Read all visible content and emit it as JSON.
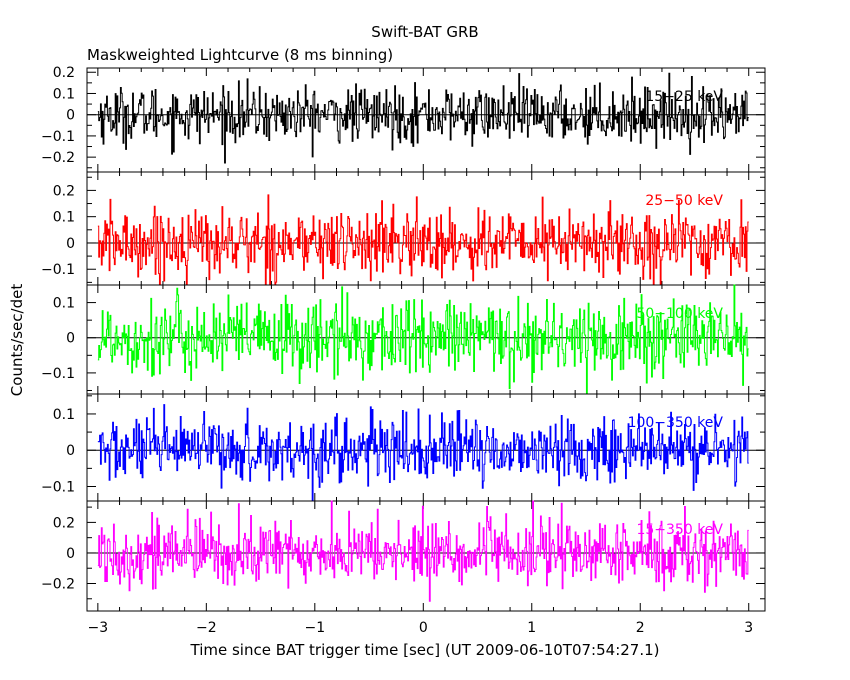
{
  "chart_data": {
    "type": "line",
    "title": "Swift-BAT GRB",
    "subtitle": "Maskweighted Lightcurve (8 ms binning)",
    "xlabel": "Time since BAT trigger time [sec] (UT 2009-06-10T07:54:27.1)",
    "ylabel": "Counts/sec/det",
    "xlim": [
      -3.1,
      3.15
    ],
    "x_ticks": [
      "−3",
      "−2",
      "−1",
      "0",
      "1",
      "2",
      "3"
    ],
    "bin_width_sec": 0.008,
    "x_range": [
      -3.0,
      3.0
    ],
    "grid": false,
    "panels": [
      {
        "band": "15−25 keV",
        "color": "#000000",
        "ylim": [
          -0.27,
          0.22
        ],
        "y_ticks": [
          "0.2",
          "0.1",
          "0",
          "−0.1",
          "−0.2"
        ],
        "noise_sigma": 0.065,
        "mean": 0.0
      },
      {
        "band": "25−50 keV",
        "color": "#ff0000",
        "ylim": [
          -0.16,
          0.27
        ],
        "y_ticks": [
          "0.2",
          "0.1",
          "0",
          "−0.1"
        ],
        "noise_sigma": 0.065,
        "mean": 0.0
      },
      {
        "band": "50−100 keV",
        "color": "#00ff00",
        "ylim": [
          -0.16,
          0.15
        ],
        "y_ticks": [
          "0.1",
          "0",
          "−0.1"
        ],
        "noise_sigma": 0.055,
        "mean": 0.0
      },
      {
        "band": "100−350 keV",
        "color": "#0000ff",
        "ylim": [
          -0.14,
          0.155
        ],
        "y_ticks": [
          "0.1",
          "0",
          "−0.1"
        ],
        "noise_sigma": 0.045,
        "mean": 0.0
      },
      {
        "band": "15−350 keV",
        "color": "#ff00ff",
        "ylim": [
          -0.38,
          0.34
        ],
        "y_ticks": [
          "0.2",
          "0",
          "−0.2"
        ],
        "noise_sigma": 0.11,
        "mean": 0.0
      }
    ]
  }
}
